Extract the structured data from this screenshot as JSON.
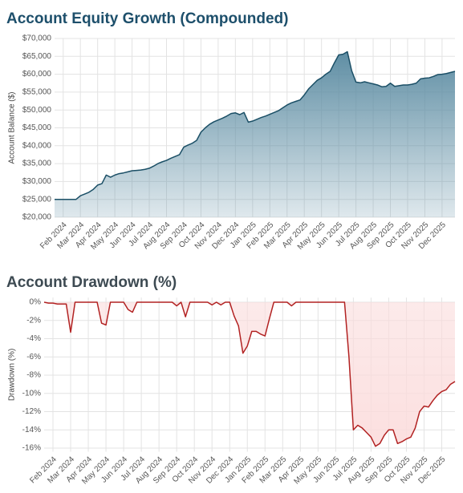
{
  "chart_data": [
    {
      "type": "area",
      "title": "Account Equity Growth (Compounded)",
      "y_label": "Account Balance ($)",
      "categories": [
        null,
        null,
        "Feb 2024",
        null,
        null,
        null,
        "Mar 2024",
        null,
        null,
        null,
        "Apr 2024",
        null,
        null,
        null,
        "May 2024",
        null,
        null,
        null,
        "Jun 2024",
        null,
        null,
        null,
        "Jul 2024",
        null,
        null,
        null,
        "Aug 2024",
        null,
        null,
        null,
        "Sep 2024",
        null,
        null,
        null,
        "Oct 2024",
        null,
        null,
        null,
        "Nov 2024",
        null,
        null,
        null,
        "Dec 2024",
        null,
        null,
        null,
        "Jan 2025",
        null,
        null,
        null,
        "Feb 2025",
        null,
        null,
        null,
        "Mar 2025",
        null,
        null,
        null,
        "Apr 2025",
        null,
        null,
        null,
        "May 2025",
        null,
        null,
        null,
        "Jun 2025",
        null,
        null,
        null,
        "Jul 2025",
        null,
        null,
        null,
        "Aug 2025",
        null,
        null,
        null,
        "Sep 2025",
        null,
        null,
        null,
        "Oct 2025",
        null,
        null,
        null,
        "Nov 2025",
        null,
        null,
        null,
        "Dec 2025",
        null,
        null,
        null
      ],
      "series": [
        {
          "name": "Account Balance",
          "color": "#1b4f66",
          "fill": "#5f8ea4",
          "values": [
            25000,
            25000,
            25000,
            25000,
            25000,
            25000,
            26000,
            26500,
            27000,
            27800,
            29000,
            29400,
            31800,
            31200,
            31800,
            32200,
            32400,
            32700,
            33000,
            33100,
            33200,
            33400,
            33700,
            34300,
            35000,
            35500,
            35900,
            36500,
            37000,
            37500,
            39600,
            40200,
            40700,
            41500,
            43800,
            45000,
            46000,
            46700,
            47200,
            47700,
            48300,
            49000,
            49200,
            48700,
            49300,
            46600,
            46900,
            47400,
            47900,
            48300,
            48800,
            49300,
            49800,
            50600,
            51400,
            52000,
            52400,
            52800,
            54200,
            55900,
            57100,
            58300,
            59000,
            60000,
            60800,
            63200,
            65400,
            65600,
            66300,
            61000,
            57800,
            57600,
            57900,
            57600,
            57300,
            57000,
            56500,
            56600,
            57500,
            56600,
            56800,
            57000,
            57000,
            57200,
            57500,
            58700,
            58900,
            59000,
            59400,
            59900,
            60000,
            60200,
            60500,
            60800
          ]
        }
      ],
      "ylim": [
        20000,
        70000
      ],
      "yticks": [
        {
          "value": 20000,
          "label": "$20,000"
        },
        {
          "value": 25000,
          "label": "$25,000"
        },
        {
          "value": 30000,
          "label": "$30,000"
        },
        {
          "value": 35000,
          "label": "$35,000"
        },
        {
          "value": 40000,
          "label": "$40,000"
        },
        {
          "value": 45000,
          "label": "$45,000"
        },
        {
          "value": 50000,
          "label": "$50,000"
        },
        {
          "value": 55000,
          "label": "$55,000"
        },
        {
          "value": 60000,
          "label": "$60,000"
        },
        {
          "value": 65000,
          "label": "$65,000"
        },
        {
          "value": 70000,
          "label": "$70,000"
        }
      ],
      "grid": true
    },
    {
      "type": "area",
      "title": "Account Drawdown (%)",
      "y_label": "Drawdown (%)",
      "categories": [
        null,
        null,
        "Feb 2024",
        null,
        null,
        null,
        "Mar 2024",
        null,
        null,
        null,
        "Apr 2024",
        null,
        null,
        null,
        "May 2024",
        null,
        null,
        null,
        "Jun 2024",
        null,
        null,
        null,
        "Jul 2024",
        null,
        null,
        null,
        "Aug 2024",
        null,
        null,
        null,
        "Sep 2024",
        null,
        null,
        null,
        "Oct 2024",
        null,
        null,
        null,
        "Nov 2024",
        null,
        null,
        null,
        "Dec 2024",
        null,
        null,
        null,
        "Jan 2025",
        null,
        null,
        null,
        "Feb 2025",
        null,
        null,
        null,
        "Mar 2025",
        null,
        null,
        null,
        "Apr 2025",
        null,
        null,
        null,
        "May 2025",
        null,
        null,
        null,
        "Jun 2025",
        null,
        null,
        null,
        "Jul 2025",
        null,
        null,
        null,
        "Aug 2025",
        null,
        null,
        null,
        "Sep 2025",
        null,
        null,
        null,
        "Oct 2025",
        null,
        null,
        null,
        "Nov 2025",
        null,
        null,
        null,
        "Dec 2025",
        null,
        null,
        null
      ],
      "series": [
        {
          "name": "Drawdown",
          "color": "#b22222",
          "fill": "#fbdcdc",
          "values": [
            0,
            -0.1,
            -0.1,
            -0.2,
            -0.2,
            -0.2,
            -3.3,
            0,
            0,
            0,
            0,
            0,
            0,
            -2.3,
            -2.5,
            0,
            0,
            0,
            0,
            -0.8,
            -1.1,
            0,
            0,
            0,
            0,
            0,
            0,
            0,
            0,
            0,
            -0.4,
            0,
            -1.6,
            0,
            0,
            0,
            0,
            0,
            -0.3,
            0,
            -0.3,
            0,
            0,
            -1.5,
            -2.6,
            -5.6,
            -4.8,
            -3.2,
            -3.2,
            -3.5,
            -3.7,
            -1.8,
            0,
            0,
            0,
            0,
            -0.4,
            0,
            0,
            0,
            0,
            0,
            0,
            0,
            0,
            0,
            0,
            0,
            0,
            -6,
            -14,
            -13.5,
            -13.8,
            -14.3,
            -14.8,
            -15.8,
            -15.5,
            -14.6,
            -14,
            -14,
            -15.5,
            -15.3,
            -15,
            -14.8,
            -13.8,
            -12,
            -11.4,
            -11.5,
            -10.8,
            -10.2,
            -9.8,
            -9.6,
            -9,
            -8.7
          ]
        }
      ],
      "ylim": [
        -16.4,
        0.5
      ],
      "yticks": [
        {
          "value": 0,
          "label": "0%"
        },
        {
          "value": -2,
          "label": "-2%"
        },
        {
          "value": -4,
          "label": "-4%"
        },
        {
          "value": -6,
          "label": "-6%"
        },
        {
          "value": -8,
          "label": "-8%"
        },
        {
          "value": -10,
          "label": "-10%"
        },
        {
          "value": -12,
          "label": "-12%"
        },
        {
          "value": -14,
          "label": "-14%"
        },
        {
          "value": -16,
          "label": "-16%"
        }
      ],
      "grid": true
    }
  ]
}
